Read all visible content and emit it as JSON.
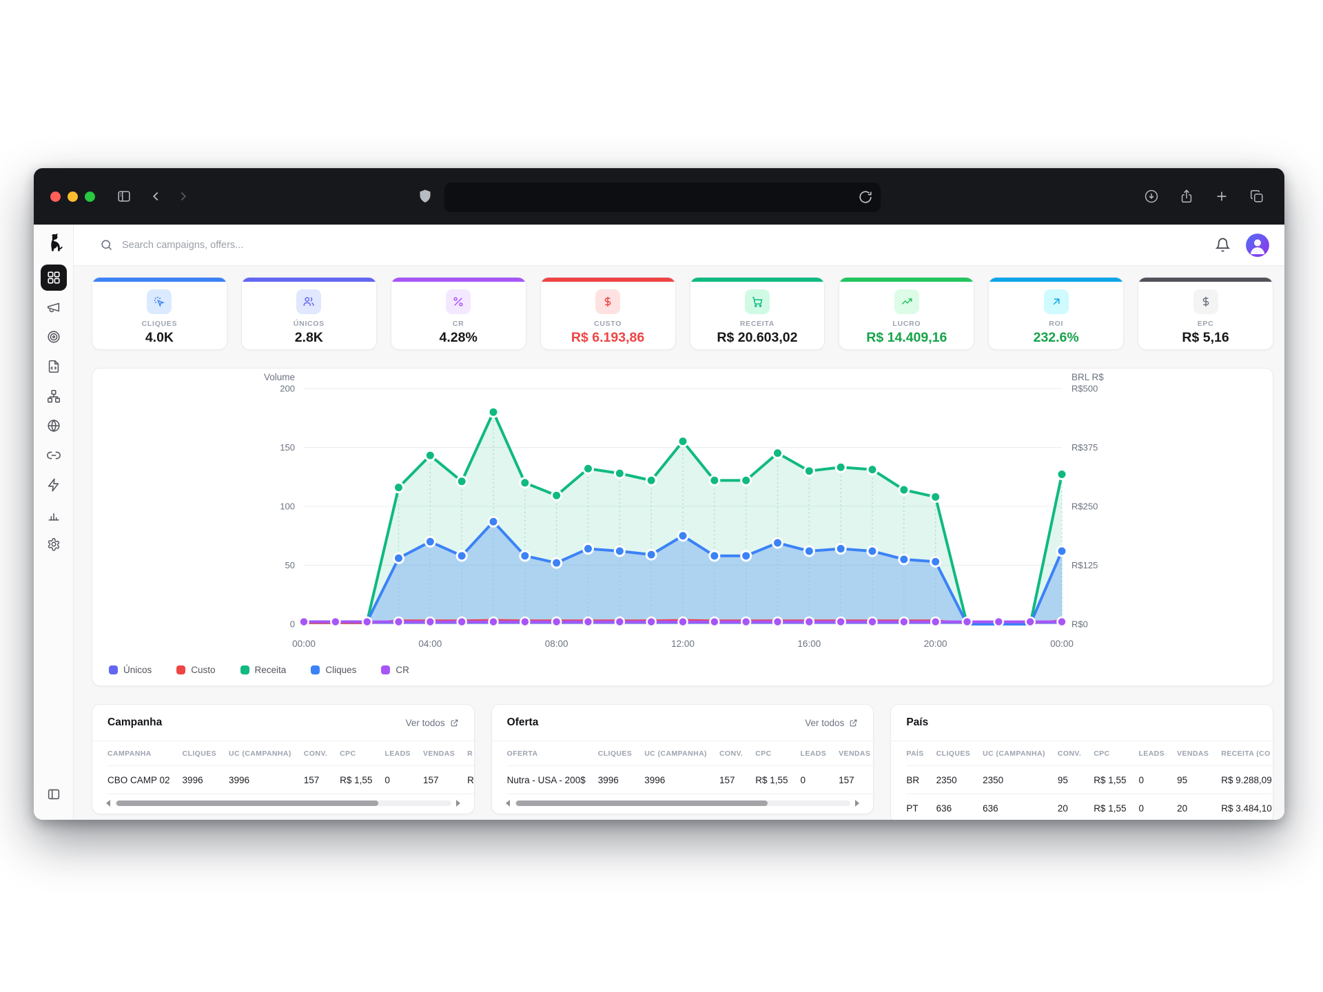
{
  "browser": {
    "traffic_lights": [
      "#ff5f57",
      "#febc2e",
      "#28c840"
    ],
    "titlebar_bg": "#17181c",
    "addressbar_bg": "#0d0e11"
  },
  "app_header": {
    "search_placeholder": "Search campaigns, offers..."
  },
  "sidebar": {
    "logo": "dog-logo",
    "icons": [
      "dashboard",
      "megaphone",
      "target",
      "file-code",
      "network",
      "globe",
      "link",
      "zap",
      "bar-chart",
      "settings"
    ],
    "active_item": "dashboard",
    "bottom_icon": "panel-collapse"
  },
  "kpis": [
    {
      "label": "CLIQUES",
      "value": "4.0K",
      "accent": "#3b82f6",
      "chip_bg": "#dbeafe",
      "icon": "cursor-click",
      "icon_color": "#3b82f6",
      "value_color": "#18181b"
    },
    {
      "label": "ÚNICOS",
      "value": "2.8K",
      "accent": "#6366f1",
      "chip_bg": "#e0e7ff",
      "icon": "users",
      "icon_color": "#6366f1",
      "value_color": "#18181b"
    },
    {
      "label": "CR",
      "value": "4.28%",
      "accent": "#a855f7",
      "chip_bg": "#f3e8ff",
      "icon": "percent",
      "icon_color": "#a855f7",
      "value_color": "#18181b"
    },
    {
      "label": "CUSTO",
      "value": "R$ 6.193,86",
      "accent": "#ef4444",
      "chip_bg": "#fee2e2",
      "icon": "dollar",
      "icon_color": "#ef4444",
      "value_color": "#ef4444"
    },
    {
      "label": "RECEITA",
      "value": "R$ 20.603,02",
      "accent": "#10b981",
      "chip_bg": "#d1fae5",
      "icon": "cart",
      "icon_color": "#10b981",
      "value_color": "#18181b"
    },
    {
      "label": "LUCRO",
      "value": "R$ 14.409,16",
      "accent": "#22c55e",
      "chip_bg": "#dcfce7",
      "icon": "trending-up",
      "icon_color": "#22c55e",
      "value_color": "#16a34a"
    },
    {
      "label": "ROI",
      "value": "232.6%",
      "accent": "#0ea5e9",
      "chip_bg": "#cffafe",
      "icon": "arrow-up-right",
      "icon_color": "#0ea5e9",
      "value_color": "#16a34a"
    },
    {
      "label": "EPC",
      "value": "R$ 5,16",
      "accent": "#52525b",
      "chip_bg": "#f4f4f5",
      "icon": "dollar",
      "icon_color": "#6b7280",
      "value_color": "#18181b"
    }
  ],
  "chart_data": {
    "type": "area",
    "y_axis_left": {
      "title": "Volume",
      "ticks": [
        200,
        150,
        100,
        50,
        0
      ],
      "range": [
        0,
        200
      ]
    },
    "y_axis_right": {
      "title": "BRL R$",
      "ticks": [
        "R$500",
        "R$375",
        "R$250",
        "R$125",
        "R$0"
      ],
      "range": [
        0,
        500
      ]
    },
    "x_ticks": [
      "00:00",
      "04:00",
      "08:00",
      "12:00",
      "16:00",
      "20:00",
      "00:00"
    ],
    "hours": [
      "00:00",
      "01:00",
      "02:00",
      "03:00",
      "04:00",
      "05:00",
      "06:00",
      "07:00",
      "08:00",
      "09:00",
      "10:00",
      "11:00",
      "12:00",
      "13:00",
      "14:00",
      "15:00",
      "16:00",
      "17:00",
      "18:00",
      "19:00",
      "20:00",
      "21:00",
      "22:00",
      "23:00",
      "00:00"
    ],
    "grid": true,
    "legend_position": "bottom-left",
    "series": [
      {
        "name": "Únicos",
        "color": "#6366f1",
        "axis": "left",
        "width": 2,
        "dots": "none",
        "values": [
          1,
          1,
          1,
          1,
          1,
          1,
          1,
          1,
          1,
          1,
          1,
          1,
          1,
          1,
          1,
          1,
          1,
          1,
          1,
          1,
          1,
          1,
          1,
          1,
          1
        ]
      },
      {
        "name": "Custo",
        "color": "#ef4444",
        "axis": "right",
        "width": 2.5,
        "dots": "none",
        "values": [
          2,
          2,
          2,
          8,
          8,
          8,
          9,
          8,
          8,
          8,
          8,
          8,
          9,
          8,
          8,
          8,
          8,
          8,
          8,
          8,
          8,
          2,
          2,
          2,
          8
        ]
      },
      {
        "name": "Receita",
        "color": "#10b981",
        "axis": "right",
        "width": 4,
        "dots": "auto",
        "fill": "rgba(16,185,129,0.13)",
        "guide": "#a7dcc5",
        "values": [
          5,
          5,
          5,
          290,
          358,
          303,
          450,
          300,
          273,
          330,
          320,
          305,
          388,
          305,
          305,
          363,
          325,
          333,
          328,
          285,
          270,
          0,
          0,
          0,
          318
        ]
      },
      {
        "name": "Cliques",
        "color": "#3b82f6",
        "axis": "left",
        "width": 4,
        "dots": "auto",
        "fill": "rgba(59,130,246,0.30)",
        "guide": "#9cc0f1",
        "values": [
          2,
          2,
          2,
          56,
          70,
          58,
          87,
          58,
          52,
          64,
          62,
          59,
          75,
          58,
          58,
          69,
          62,
          64,
          62,
          55,
          53,
          0,
          0,
          0,
          62
        ]
      },
      {
        "name": "CR",
        "color": "#a855f7",
        "axis": "left",
        "width": 4,
        "dots": "all",
        "values": [
          2,
          2,
          2,
          2,
          2,
          2,
          2,
          2,
          2,
          2,
          2,
          2,
          2,
          2,
          2,
          2,
          2,
          2,
          2,
          2,
          2,
          2,
          2,
          2,
          2
        ]
      }
    ]
  },
  "tables": [
    {
      "title": "Campanha",
      "link_label": "Ver todos",
      "scroll_thumb": "78%",
      "headers": [
        "CAMPANHA",
        "CLIQUES",
        "UC (CAMPANHA)",
        "CONV.",
        "CPC",
        "LEADS",
        "VENDAS",
        "R"
      ],
      "rows": [
        [
          "CBO CAMP 02",
          "3996",
          "3996",
          "157",
          "R$ 1,55",
          "0",
          "157",
          "R"
        ]
      ]
    },
    {
      "title": "Oferta",
      "link_label": "Ver todos",
      "scroll_thumb": "75%",
      "headers": [
        "OFERTA",
        "CLIQUES",
        "UC (CAMPANHA)",
        "CONV.",
        "CPC",
        "LEADS",
        "VENDAS"
      ],
      "rows": [
        [
          "Nutra - USA - 200$",
          "3996",
          "3996",
          "157",
          "R$ 1,55",
          "0",
          "157"
        ]
      ]
    },
    {
      "title": "País",
      "link_label": "",
      "scroll_thumb": "",
      "headers": [
        "PAÍS",
        "CLIQUES",
        "UC (CAMPANHA)",
        "CONV.",
        "CPC",
        "LEADS",
        "VENDAS",
        "RECEITA (CO"
      ],
      "rows": [
        [
          "BR",
          "2350",
          "2350",
          "95",
          "R$ 1,55",
          "0",
          "95",
          "R$ 9.288,09"
        ],
        [
          "PT",
          "636",
          "636",
          "20",
          "R$ 1,55",
          "0",
          "20",
          "R$ 3.484,10"
        ]
      ]
    }
  ]
}
